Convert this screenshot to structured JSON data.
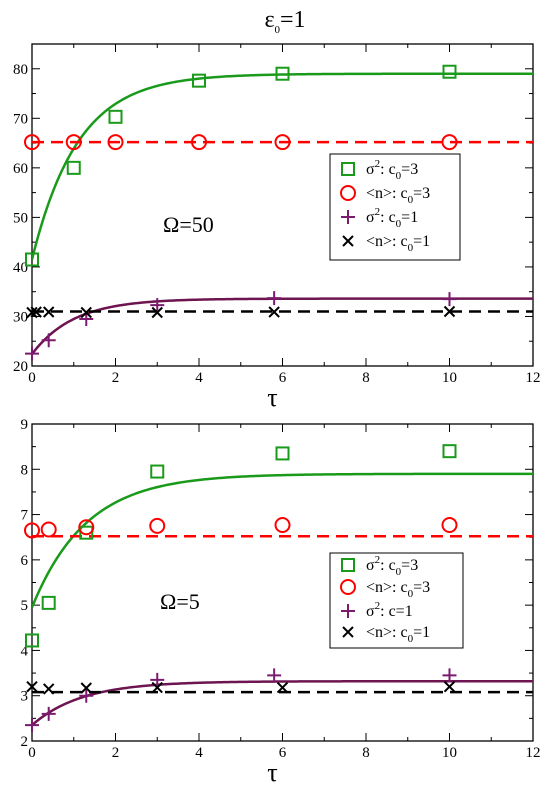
{
  "title": {
    "symbol": "ε",
    "sub": "0",
    "rest": "=1"
  },
  "chart_data": [
    {
      "type": "scatter",
      "panel_label": "Ω=50",
      "xlabel": "τ",
      "xlim": [
        0,
        12
      ],
      "ylim": [
        20,
        85
      ],
      "xticks": [
        0,
        2,
        4,
        6,
        8,
        10,
        12
      ],
      "yticks": [
        20,
        30,
        40,
        50,
        60,
        70,
        80
      ],
      "legend_position": "right",
      "series": [
        {
          "name": "σ²: c₀=3",
          "legend": {
            "sym": "σ",
            "sup": "2",
            "mid": ": c",
            "sub": "0",
            "tail": "=3"
          },
          "marker": "square",
          "color": "#1a9a1a",
          "x": [
            0,
            1,
            2,
            4,
            6,
            10
          ],
          "y": [
            41.5,
            60,
            70.3,
            77.6,
            79,
            79.4
          ]
        },
        {
          "name": "<n>: c₀=3",
          "legend": {
            "sym": "<n>",
            "sup": "",
            "mid": ": c",
            "sub": "0",
            "tail": "=3"
          },
          "marker": "circle",
          "color": "#ff0000",
          "x": [
            0,
            1,
            2,
            4,
            6,
            10
          ],
          "y": [
            65.2,
            65.2,
            65.2,
            65.2,
            65.2,
            65.2
          ]
        },
        {
          "name": "σ²: c₀=1",
          "legend": {
            "sym": "σ",
            "sup": "2",
            "mid": ": c",
            "sub": "0",
            "tail": "=1"
          },
          "marker": "plus",
          "color": "#7b1a6e",
          "x": [
            0,
            0.4,
            1.3,
            3,
            5.8,
            10
          ],
          "y": [
            22.5,
            25.2,
            29.5,
            32.3,
            33.7,
            33.5
          ]
        },
        {
          "name": "<n>: c₀=1",
          "legend": {
            "sym": "<n>",
            "sup": "",
            "mid": ": c",
            "sub": "0",
            "tail": "=1"
          },
          "marker": "cross",
          "color": "#000000",
          "x": [
            0,
            0.1,
            0.4,
            1.3,
            3,
            5.8,
            10
          ],
          "y": [
            30.8,
            30.9,
            30.9,
            30.8,
            30.8,
            30.9,
            31
          ]
        }
      ],
      "curves": [
        {
          "kind": "saturating",
          "color": "#1a9a1a",
          "a": 79,
          "b": 41.5,
          "tau": 1.1,
          "dashed": false
        },
        {
          "kind": "constant",
          "color": "#ff0000",
          "value": 65.2,
          "dashed": true
        },
        {
          "kind": "saturating",
          "color": "#6e1450",
          "a": 33.6,
          "b": 22.4,
          "tau": 1.0,
          "dashed": false
        },
        {
          "kind": "constant",
          "color": "#000000",
          "value": 31,
          "dashed": true
        }
      ]
    },
    {
      "type": "scatter",
      "panel_label": "Ω=5",
      "xlabel": "τ",
      "xlim": [
        0,
        12
      ],
      "ylim": [
        2,
        9
      ],
      "xticks": [
        0,
        2,
        4,
        6,
        8,
        10,
        12
      ],
      "yticks": [
        2,
        3,
        4,
        5,
        6,
        7,
        8,
        9
      ],
      "legend_position": "right",
      "series": [
        {
          "name": "σ²: c₀=3",
          "legend": {
            "sym": "σ",
            "sup": "2",
            "mid": ": c",
            "sub": "0",
            "tail": "=3"
          },
          "marker": "square",
          "color": "#1a9a1a",
          "x": [
            0,
            0.4,
            1.3,
            3,
            6,
            10
          ],
          "y": [
            4.22,
            5.05,
            6.6,
            7.95,
            8.35,
            8.4
          ]
        },
        {
          "name": "<n>: c₀=3",
          "legend": {
            "sym": "<n>",
            "sup": "",
            "mid": ": c",
            "sub": "0",
            "tail": "=3"
          },
          "marker": "circle",
          "color": "#ff0000",
          "x": [
            0,
            0.4,
            1.3,
            3,
            6,
            10
          ],
          "y": [
            6.65,
            6.67,
            6.72,
            6.75,
            6.77,
            6.77
          ]
        },
        {
          "name": "σ²: c=1",
          "legend": {
            "sym": "σ",
            "sup": "2",
            "mid": ": c",
            "sub": "",
            "tail": "=1"
          },
          "marker": "plus",
          "color": "#7b1a6e",
          "x": [
            0,
            0.4,
            1.3,
            3,
            5.8,
            10
          ],
          "y": [
            2.35,
            2.6,
            3.0,
            3.35,
            3.45,
            3.45
          ]
        },
        {
          "name": "<n>: c₀=1",
          "legend": {
            "sym": "<n>",
            "sup": "",
            "mid": ": c",
            "sub": "0",
            "tail": "=1"
          },
          "marker": "cross",
          "color": "#000000",
          "x": [
            0,
            0.4,
            1.3,
            3,
            6,
            10
          ],
          "y": [
            3.2,
            3.15,
            3.17,
            3.18,
            3.18,
            3.2
          ]
        }
      ],
      "curves": [
        {
          "kind": "saturating",
          "color": "#1a9a1a",
          "a": 7.9,
          "b": 4.95,
          "tau": 1.3,
          "dashed": false
        },
        {
          "kind": "constant",
          "color": "#ff0000",
          "value": 6.52,
          "dashed": true
        },
        {
          "kind": "saturating",
          "color": "#6e1450",
          "a": 3.32,
          "b": 2.35,
          "tau": 1.2,
          "dashed": false
        },
        {
          "kind": "constant",
          "color": "#000000",
          "value": 3.08,
          "dashed": true
        }
      ]
    }
  ]
}
